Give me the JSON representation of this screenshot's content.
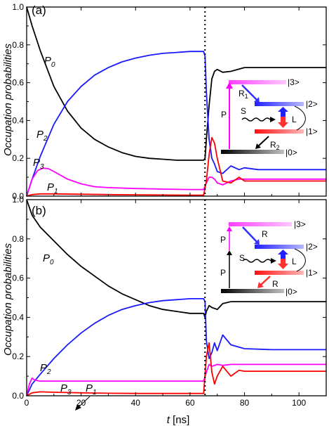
{
  "chart_data": [
    {
      "type": "line",
      "panel_label": "(a)",
      "ylabel": "Occupation probabilities",
      "xlim": [
        0,
        110
      ],
      "ylim": [
        0,
        1.0
      ],
      "xticks": [
        0,
        20,
        40,
        60,
        80,
        100
      ],
      "yticks": [
        0.0,
        0.2,
        0.4,
        0.6,
        0.8,
        1.0
      ],
      "ytick_labels": [
        "0.0",
        "0.2",
        "0.4",
        "0.6",
        "0.8",
        "1.0"
      ],
      "show_xtick_labels": false,
      "vline_x": 65.5,
      "series": [
        {
          "id": "P0",
          "color": "#000000",
          "x": [
            0,
            2,
            5,
            10,
            15,
            20,
            25,
            30,
            35,
            40,
            45,
            50,
            55,
            60,
            65,
            65.5,
            66,
            67,
            68,
            69,
            70,
            72,
            75,
            80,
            85,
            90,
            100,
            110
          ],
          "y": [
            1.0,
            0.9,
            0.77,
            0.58,
            0.45,
            0.36,
            0.3,
            0.26,
            0.23,
            0.21,
            0.2,
            0.195,
            0.19,
            0.19,
            0.19,
            0.2,
            0.3,
            0.48,
            0.62,
            0.66,
            0.67,
            0.655,
            0.66,
            0.68,
            0.68,
            0.68,
            0.68,
            0.68
          ]
        },
        {
          "id": "P2",
          "color": "#1a1aff",
          "x": [
            0,
            2,
            5,
            10,
            15,
            20,
            25,
            30,
            35,
            40,
            45,
            50,
            55,
            60,
            65,
            65.5,
            66,
            67,
            68,
            69,
            70,
            72,
            75,
            78,
            80,
            85,
            90,
            100,
            110
          ],
          "y": [
            0.0,
            0.09,
            0.21,
            0.38,
            0.5,
            0.58,
            0.64,
            0.68,
            0.71,
            0.73,
            0.745,
            0.755,
            0.76,
            0.765,
            0.765,
            0.74,
            0.55,
            0.3,
            0.2,
            0.17,
            0.13,
            0.12,
            0.16,
            0.14,
            0.15,
            0.14,
            0.14,
            0.14,
            0.14
          ]
        },
        {
          "id": "P3",
          "color": "#ff00ff",
          "x": [
            0,
            2,
            4,
            6,
            8,
            10,
            15,
            20,
            25,
            30,
            40,
            50,
            60,
            65,
            66,
            67,
            68,
            69,
            70,
            72,
            75,
            78,
            80,
            85,
            90,
            100,
            110
          ],
          "y": [
            0.0,
            0.09,
            0.135,
            0.148,
            0.145,
            0.13,
            0.09,
            0.065,
            0.05,
            0.045,
            0.04,
            0.037,
            0.035,
            0.035,
            0.07,
            0.1,
            0.1,
            0.09,
            0.07,
            0.06,
            0.08,
            0.09,
            0.09,
            0.09,
            0.09,
            0.09,
            0.09
          ]
        },
        {
          "id": "P1",
          "color": "#ff0000",
          "x": [
            0,
            2,
            5,
            10,
            20,
            30,
            40,
            50,
            60,
            65,
            66,
            67,
            68,
            69,
            70,
            72,
            75,
            78,
            80,
            85,
            90,
            100,
            110
          ],
          "y": [
            0.0,
            0.008,
            0.012,
            0.012,
            0.01,
            0.008,
            0.007,
            0.006,
            0.005,
            0.005,
            0.08,
            0.22,
            0.31,
            0.28,
            0.2,
            0.08,
            0.07,
            0.1,
            0.08,
            0.08,
            0.08,
            0.08,
            0.08
          ]
        }
      ],
      "curve_labels": [
        {
          "main": "P",
          "sub": "0",
          "color": "#000000"
        },
        {
          "main": "P",
          "sub": "2",
          "color": "#000000"
        },
        {
          "main": "P",
          "sub": "3",
          "color": "#000000"
        },
        {
          "main": "P",
          "sub": "1",
          "color": "#000000"
        }
      ],
      "inset": {
        "level_labels": [
          "|3>",
          "|2>",
          "|1>",
          "|0>"
        ],
        "arrow_labels": {
          "R1_main": "R",
          "R1_sub": "1",
          "R2_main": "R",
          "R2_sub": "2",
          "P": "P",
          "S": "S",
          "L": "L"
        }
      }
    },
    {
      "type": "line",
      "panel_label": "(b)",
      "ylabel": "Occupation probabilities",
      "xlabel_var": "t",
      "xlabel_unit": " [ns]",
      "xlim": [
        0,
        110
      ],
      "ylim": [
        0,
        1.0
      ],
      "xticks": [
        0,
        20,
        40,
        60,
        80,
        100
      ],
      "yticks": [
        0.0,
        0.2,
        0.4,
        0.6,
        0.8,
        1.0
      ],
      "ytick_labels": [
        "0.0",
        "0.2",
        "0.4",
        "0.6",
        "0.8",
        "1.0"
      ],
      "show_xtick_labels": true,
      "vline_x": 65.5,
      "series": [
        {
          "id": "P0",
          "color": "#000000",
          "x": [
            0,
            2,
            5,
            10,
            15,
            20,
            25,
            30,
            35,
            40,
            45,
            50,
            55,
            60,
            65,
            65.5,
            66,
            67,
            68,
            70,
            72,
            75,
            80,
            90,
            100,
            110
          ],
          "y": [
            1.0,
            0.92,
            0.86,
            0.79,
            0.72,
            0.66,
            0.61,
            0.56,
            0.52,
            0.49,
            0.46,
            0.44,
            0.43,
            0.42,
            0.42,
            0.4,
            0.43,
            0.46,
            0.45,
            0.44,
            0.47,
            0.48,
            0.48,
            0.48,
            0.48,
            0.48
          ]
        },
        {
          "id": "P2",
          "color": "#1a1aff",
          "x": [
            0,
            2,
            5,
            10,
            15,
            20,
            25,
            30,
            35,
            40,
            45,
            50,
            55,
            60,
            65,
            65.5,
            66,
            67,
            68,
            69,
            70,
            72,
            75,
            80,
            90,
            100,
            110
          ],
          "y": [
            0.0,
            0.06,
            0.11,
            0.19,
            0.26,
            0.32,
            0.37,
            0.41,
            0.44,
            0.46,
            0.475,
            0.485,
            0.49,
            0.495,
            0.495,
            0.48,
            0.28,
            0.19,
            0.22,
            0.27,
            0.23,
            0.31,
            0.26,
            0.24,
            0.235,
            0.235,
            0.235
          ]
        },
        {
          "id": "P3",
          "color": "#ff00ff",
          "x": [
            0,
            1,
            2,
            3,
            5,
            10,
            20,
            30,
            40,
            50,
            60,
            65,
            66,
            67,
            68,
            70,
            72,
            75,
            80,
            90,
            100,
            110
          ],
          "y": [
            0.0,
            0.06,
            0.09,
            0.08,
            0.075,
            0.075,
            0.075,
            0.075,
            0.075,
            0.075,
            0.075,
            0.075,
            0.12,
            0.16,
            0.15,
            0.16,
            0.155,
            0.16,
            0.16,
            0.16,
            0.16,
            0.16
          ]
        },
        {
          "id": "P1",
          "color": "#ff0000",
          "x": [
            0,
            2,
            5,
            10,
            20,
            30,
            40,
            50,
            60,
            65,
            66,
            67,
            68,
            69,
            70,
            72,
            75,
            78,
            80,
            90,
            100,
            110
          ],
          "y": [
            0.0,
            0.015,
            0.02,
            0.018,
            0.015,
            0.013,
            0.012,
            0.012,
            0.012,
            0.012,
            0.2,
            0.27,
            0.12,
            0.06,
            0.1,
            0.15,
            0.1,
            0.13,
            0.125,
            0.125,
            0.125,
            0.125
          ]
        }
      ],
      "curve_labels": [
        {
          "main": "P",
          "sub": "0",
          "color": "#000000"
        },
        {
          "main": "P",
          "sub": "2",
          "color": "#000000"
        },
        {
          "main": "P",
          "sub": "3",
          "color": "#000000"
        },
        {
          "main": "P",
          "sub": "1",
          "color": "#000000"
        }
      ],
      "inset": {
        "level_labels": [
          "|3>",
          "|2>",
          "|1>",
          "|0>"
        ],
        "arrow_labels": {
          "R_upper": "R",
          "R_lower": "R",
          "P_upper": "P",
          "P_lower": "P",
          "S": "S",
          "L": "L"
        }
      }
    }
  ]
}
